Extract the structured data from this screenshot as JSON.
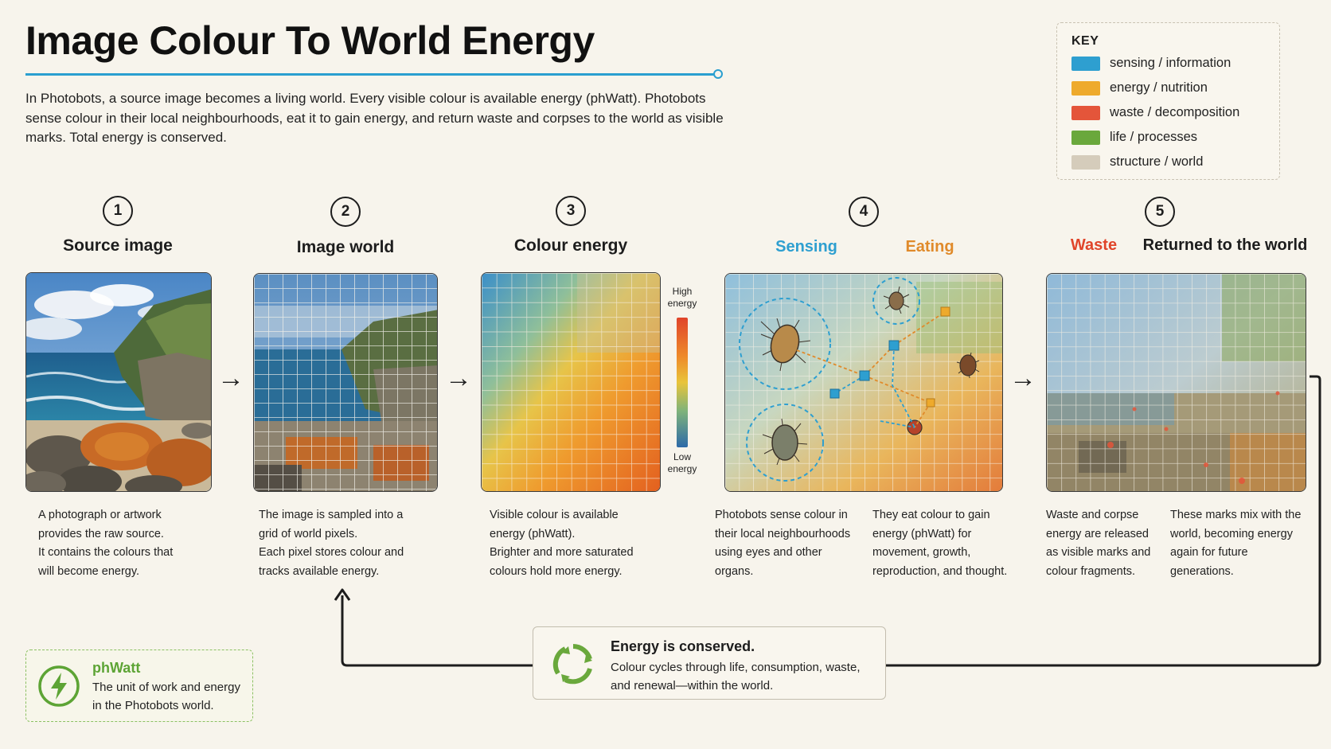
{
  "title": "Image Colour To World Energy",
  "intro": "In Photobots, a source image becomes a living world. Every visible colour is available energy (phWatt). Photobots sense colour in their local neighbourhoods, eat it to gain energy, and return waste and corpses to the world as visible marks. Total energy is conserved.",
  "key": {
    "title": "KEY",
    "items": [
      {
        "label": "sensing / information",
        "color": "#2e9fd0"
      },
      {
        "label": "energy / nutrition",
        "color": "#eeaa2c"
      },
      {
        "label": "waste / decomposition",
        "color": "#e4553a"
      },
      {
        "label": "life / processes",
        "color": "#6aa83c"
      },
      {
        "label": "structure / world",
        "color": "#d5ccbb"
      }
    ]
  },
  "steps": [
    {
      "num": "1",
      "title": "Source image",
      "desc": [
        "A photograph or artwork",
        "provides the raw source.",
        "It contains the colours that",
        "will become energy."
      ]
    },
    {
      "num": "2",
      "title": "Image world",
      "desc": [
        "The image is sampled into a",
        "grid of world pixels.",
        "Each pixel stores colour and",
        "tracks available energy."
      ]
    },
    {
      "num": "3",
      "title": "Colour energy",
      "desc": [
        "Visible colour is available",
        "energy (phWatt).",
        "Brighter and more saturated",
        "colours hold more energy."
      ]
    },
    {
      "num": "4",
      "title_a": "Sensing",
      "title_b": "Eating",
      "desc_a": [
        "Photobots sense colour in",
        "their local neighbourhoods",
        "using eyes and other",
        "organs."
      ],
      "desc_b": [
        "They eat colour to gain",
        "energy (phWatt) for",
        "movement, growth,",
        "reproduction, and thought."
      ]
    },
    {
      "num": "5",
      "title_a": "Waste",
      "title_b": "Returned to the world",
      "desc_a": [
        "Waste and corpse",
        "energy are released",
        "as visible marks and",
        "colour fragments."
      ],
      "desc_b": [
        "These marks mix with the",
        "world, becoming energy",
        "again for future",
        "generations."
      ]
    }
  ],
  "scale": {
    "high": [
      "High",
      "energy"
    ],
    "low": [
      "Low",
      "energy"
    ]
  },
  "conserved": {
    "title": "Energy is conserved.",
    "text": "Colour cycles through life, consumption, waste, and renewal—within the world."
  },
  "phwatt": {
    "title": "phWatt",
    "text": "The unit of work and energy in the Photobots world."
  },
  "colors": {
    "sensing": "#2e9fd0",
    "energy": "#eeaa2c",
    "waste": "#e4553a",
    "life": "#6aa83c"
  }
}
